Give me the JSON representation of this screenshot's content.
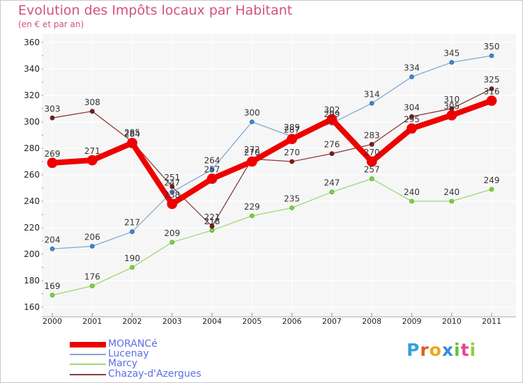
{
  "header": {
    "title": "Evolution des Impôts locaux par Habitant",
    "subtitle": "(en € et par an)"
  },
  "logo": {
    "text": "Proxiti",
    "letters": [
      "P",
      "r",
      "o",
      "x",
      "i",
      "t",
      "i"
    ],
    "colors": [
      "#3aa0dc",
      "#e35b1f",
      "#f2a516",
      "#2f8fd8",
      "#6cbf2e",
      "#e04b8c",
      "#9ac83a"
    ]
  },
  "chart_data": {
    "type": "line",
    "title": "Evolution des Impôts locaux par Habitant",
    "subtitle": "(en € et par an)",
    "xlabel": "",
    "ylabel": "",
    "x": [
      "2000",
      "2001",
      "2002",
      "2003",
      "2004",
      "2005",
      "2006",
      "2007",
      "2008",
      "2009",
      "2010",
      "2011"
    ],
    "ylim": [
      160,
      360
    ],
    "yticks": [
      "160",
      "180",
      "200",
      "220",
      "240",
      "260",
      "280",
      "300",
      "320",
      "340",
      "360"
    ],
    "grid": true,
    "legend_position": "bottom-left",
    "series": [
      {
        "name": "MORANCé",
        "color": "#ee0000",
        "values": [
          269,
          271,
          284,
          238,
          257,
          270,
          287,
          302,
          270,
          295,
          305,
          316
        ]
      },
      {
        "name": "Lucenay",
        "color": "#7fa8d4",
        "values": [
          204,
          206,
          217,
          247,
          264,
          300,
          289,
          299,
          314,
          334,
          345,
          350
        ]
      },
      {
        "name": "Marcy",
        "color": "#9ed872",
        "values": [
          169,
          176,
          190,
          209,
          218,
          229,
          235,
          247,
          257,
          240,
          240,
          249
        ]
      },
      {
        "name": "Chazay-d'Azergues",
        "color": "#8b3a3a",
        "values": [
          303,
          308,
          285,
          251,
          221,
          272,
          270,
          276,
          283,
          304,
          310,
          325
        ]
      }
    ]
  }
}
